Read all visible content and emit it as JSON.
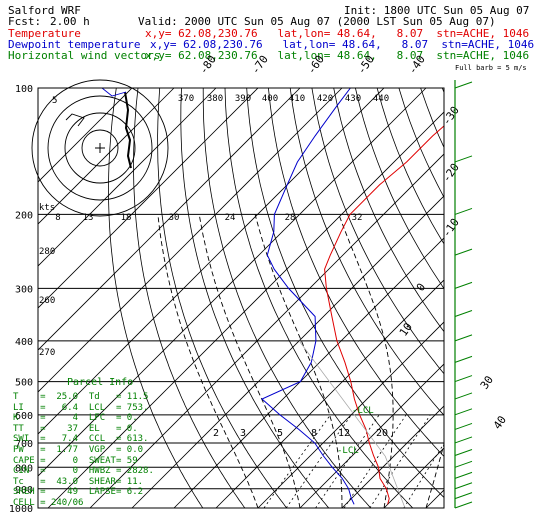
{
  "header": {
    "model": "Salford WRF",
    "init": "Init: 1800 UTC Sun 05 Aug 07",
    "fcst_label": "Fcst:",
    "fcst_value": "2.00 h",
    "valid": "Valid: 2000 UTC Sun 05 Aug 07 (2000 LST Sun 05 Aug 07)",
    "rows": [
      {
        "label": "Temperature",
        "info": "x,y= 62.08,230.76   lat,lon= 48.64,   8.07  stn=ACHE, 1046",
        "color": "#e00000"
      },
      {
        "label": "Dewpoint temperature",
        "info": "x,y= 62.08,230.76   lat,lon= 48.64,   8.07  stn=ACHE, 1046",
        "color": "#0000cc"
      },
      {
        "label": "Horizontal wind vectors",
        "info": "x,y= 62.08,230.76   lat,lon= 48.64,   8.07  stn=ACHE, 1046",
        "color": "#008000"
      }
    ]
  },
  "chart_data": {
    "type": "line",
    "subtype": "skew-T log-P diagram",
    "y_axis": {
      "scale": "log",
      "ticks_hPa": [
        100,
        200,
        300,
        400,
        500,
        600,
        700,
        800,
        900,
        1000
      ]
    },
    "pressure_axis_ticks": [
      "100",
      "200",
      "300",
      "400",
      "500",
      "600",
      "700",
      "800",
      "900",
      "1000"
    ],
    "isotherm_labels": [
      {
        "text": "-80"
      },
      {
        "text": "-70"
      },
      {
        "text": "-60"
      },
      {
        "text": "-50"
      },
      {
        "text": "-40"
      },
      {
        "text": "-30"
      },
      {
        "text": "-20"
      },
      {
        "text": "-10"
      },
      {
        "text": "0"
      },
      {
        "text": "10"
      },
      {
        "text": "30"
      },
      {
        "text": "40"
      }
    ],
    "theta_labels": [
      "370",
      "380",
      "390",
      "400",
      "410",
      "420",
      "430",
      "440"
    ],
    "kts_row_labels": [
      "kts",
      "8",
      "13",
      "18",
      "30",
      "24",
      "28",
      "32"
    ],
    "height_labels": [
      "280",
      "260",
      "270"
    ],
    "mixing_ratio_labels": [
      "2",
      "3",
      "5",
      "8",
      "12",
      "20"
    ],
    "annotations": [
      "LCL",
      "LCL"
    ],
    "wind_profile_label": "Full barb = 5 m/s",
    "series": [
      {
        "name": "Temperature",
        "color": "#e00000",
        "pressure_hPa": [
          980,
          950,
          900,
          850,
          800,
          750,
          700,
          650,
          600,
          550,
          500,
          450,
          400,
          350,
          300,
          270,
          250,
          220,
          200,
          170,
          150,
          130,
          110,
          100
        ],
        "temperature_C": [
          20,
          19,
          16,
          12,
          9,
          5,
          1,
          -3,
          -8,
          -13,
          -18,
          -24,
          -31,
          -38,
          -46,
          -51,
          -53,
          -56,
          -58,
          -58,
          -57,
          -57,
          -56,
          -55
        ]
      },
      {
        "name": "Dewpoint temperature",
        "color": "#0000cc",
        "pressure_hPa": [
          980,
          950,
          900,
          850,
          800,
          750,
          700,
          650,
          600,
          550,
          500,
          450,
          400,
          350,
          300,
          270,
          250,
          220,
          200,
          170,
          150,
          130,
          110,
          100
        ],
        "temperature_C": [
          12,
          10,
          7,
          3,
          -2,
          -7,
          -12,
          -19,
          -27,
          -35,
          -30,
          -32,
          -36,
          -42,
          -55,
          -63,
          -68,
          -72,
          -76,
          -80,
          -83,
          -85,
          -87,
          -88
        ]
      }
    ],
    "winds": {
      "levels_hPa": [
        1000,
        950,
        900,
        850,
        800,
        750,
        700,
        650,
        600,
        550,
        500,
        450,
        400,
        350,
        300,
        250,
        200,
        150,
        100
      ],
      "color": "#008000"
    }
  },
  "parcel_info": {
    "title": "Parcel Info",
    "rows": [
      {
        "k": "T",
        "v1": "25.0",
        "k2": "Td",
        "v2": "11.5"
      },
      {
        "k": "LI",
        "v1": "6.4",
        "k2": "LCL",
        "v2": "753."
      },
      {
        "k": "K",
        "v1": "4",
        "k2": "LFC",
        "v2": "0."
      },
      {
        "k": "TT",
        "v1": "37",
        "k2": "EL",
        "v2": "0."
      },
      {
        "k": "SWI",
        "v1": "7.4",
        "k2": "CCL",
        "v2": "613."
      },
      {
        "k": "PW",
        "v1": "1.77",
        "k2": "VGP",
        "v2": "0.0"
      },
      {
        "k": "CAPE",
        "v1": "0",
        "k2": "SWEAT",
        "v2": "59"
      },
      {
        "k": "CIN",
        "v1": "0",
        "k2": "HWBZ",
        "v2": "2828."
      },
      {
        "k": "Tc",
        "v1": "43.0",
        "k2": "SHEAR",
        "v2": "11."
      },
      {
        "k": "SREH",
        "v1": "49",
        "k2": "LAPSE",
        "v2": "6.2"
      }
    ],
    "cell_label": "CELL",
    "cell_value": "240/06"
  },
  "hodograph": {
    "ring_label": "5"
  }
}
